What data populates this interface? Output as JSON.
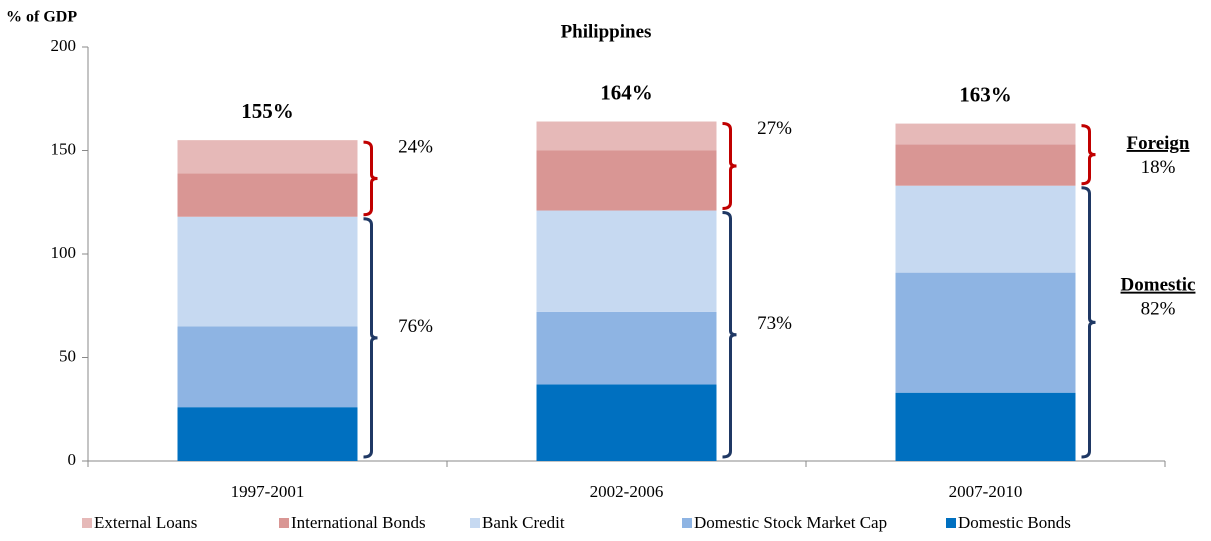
{
  "chart_data": {
    "type": "stacked_bar",
    "title": "Philippines",
    "y_label": "% of GDP",
    "categories": [
      "1997-2001",
      "2002-2006",
      "2007-2010"
    ],
    "series": [
      {
        "name": "Domestic Bonds",
        "color": "#0070c0",
        "values": [
          26,
          37,
          33
        ]
      },
      {
        "name": "Domestic Stock Market Cap",
        "color": "#8eb4e3",
        "values": [
          39,
          35,
          58
        ]
      },
      {
        "name": "Bank Credit",
        "color": "#c6d9f1",
        "values": [
          53,
          49,
          42
        ]
      },
      {
        "name": "International Bonds",
        "color": "#d99694",
        "values": [
          21,
          29,
          20
        ]
      },
      {
        "name": "External Loans",
        "color": "#e6b9b8",
        "values": [
          16,
          14,
          10
        ]
      }
    ],
    "totals": [
      "155%",
      "164%",
      "163%"
    ],
    "foreign_shares": [
      "24%",
      "27%",
      "18%"
    ],
    "domestic_shares": [
      "76%",
      "73%",
      "82%"
    ],
    "foreign_label": "Foreign",
    "domestic_label": "Domestic",
    "foreign_color": "#c00000",
    "domestic_color": "#1f3864",
    "ylim": [
      0,
      200
    ],
    "yticks": [
      0,
      50,
      100,
      150,
      200
    ]
  }
}
